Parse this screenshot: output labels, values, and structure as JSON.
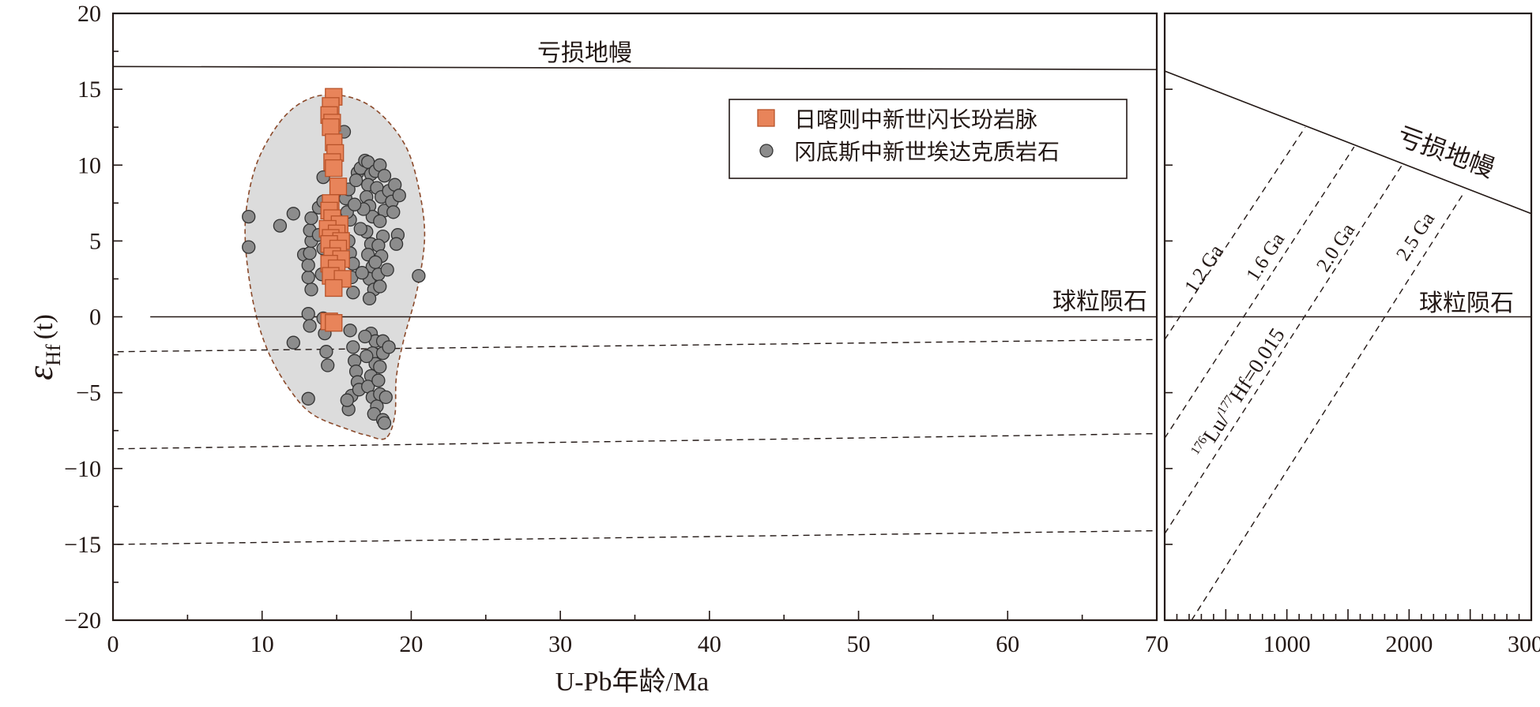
{
  "colors": {
    "axis": "#231815",
    "square_fill": "#E8845A",
    "square_stroke": "#B8532A",
    "circle_fill": "#8C8C8C",
    "circle_stroke": "#333333",
    "field_fill": "#DCDCDC",
    "field_stroke": "#8B4A2B"
  },
  "chart_data": [
    {
      "type": "scatter",
      "xlabel": "U-Pb年龄/Ma",
      "ylabel": "εHf (t)",
      "ylabel_main": "ε",
      "ylabel_sub": "Hf",
      "ylabel_tail": "(t)",
      "xlim": [
        0,
        70
      ],
      "ylim": [
        -20,
        20
      ],
      "xticks": [
        0,
        10,
        20,
        30,
        40,
        50,
        60,
        70
      ],
      "yticks": [
        20,
        15,
        10,
        5,
        0,
        -5,
        -10,
        -15,
        -20
      ],
      "ytick_labels": [
        "20",
        "15",
        "10",
        "5",
        "0",
        "−5",
        "−10",
        "−15",
        "−20"
      ],
      "legend_position": "top-right",
      "legend": [
        {
          "label": "日喀则中新世闪长玢岩脉",
          "marker": "square"
        },
        {
          "label": "冈底斯中新世埃达克质岩石",
          "marker": "circle"
        }
      ],
      "annotations": {
        "depleted_mantle": "亏损地幔",
        "chur": "球粒陨石"
      },
      "reference_lines": [
        {
          "name": "亏损地幔",
          "style": "solid",
          "y_start": 16.5,
          "y_end": 16.3
        },
        {
          "name": "球粒陨石",
          "style": "solid",
          "y_start": 0,
          "y_end": 0
        },
        {
          "style": "dashed",
          "y_start": -2.3,
          "y_end": -1.5
        },
        {
          "style": "dashed",
          "y_start": -8.7,
          "y_end": -7.7
        },
        {
          "style": "dashed",
          "y_start": -15.0,
          "y_end": -14.1
        }
      ],
      "series": [
        {
          "name": "日喀则中新世闪长玢岩脉",
          "marker": "square",
          "points": [
            [
              14.8,
              14.5
            ],
            [
              14.6,
              13.9
            ],
            [
              14.5,
              13.3
            ],
            [
              14.7,
              12.8
            ],
            [
              14.6,
              12.5
            ],
            [
              14.8,
              11.5
            ],
            [
              14.9,
              10.8
            ],
            [
              14.7,
              10.2
            ],
            [
              14.8,
              9.8
            ],
            [
              15.1,
              8.6
            ],
            [
              14.6,
              7.5
            ],
            [
              14.5,
              7.0
            ],
            [
              14.7,
              6.5
            ],
            [
              15.2,
              6.1
            ],
            [
              14.4,
              5.8
            ],
            [
              15.0,
              5.5
            ],
            [
              14.6,
              5.2
            ],
            [
              15.3,
              5.0
            ],
            [
              14.5,
              4.8
            ],
            [
              15.1,
              4.5
            ],
            [
              14.7,
              4.0
            ],
            [
              15.3,
              3.8
            ],
            [
              14.5,
              3.5
            ],
            [
              15.0,
              3.2
            ],
            [
              14.6,
              2.7
            ],
            [
              15.4,
              2.5
            ],
            [
              14.8,
              1.9
            ],
            [
              14.5,
              -0.3
            ],
            [
              14.8,
              -0.4
            ]
          ]
        },
        {
          "name": "冈底斯中新世埃达克质岩石",
          "marker": "circle",
          "points": [
            [
              9.1,
              6.6
            ],
            [
              9.1,
              4.6
            ],
            [
              11.2,
              6.0
            ],
            [
              12.1,
              6.8
            ],
            [
              12.8,
              4.1
            ],
            [
              12.1,
              -1.7
            ],
            [
              13.1,
              -5.4
            ],
            [
              13.1,
              0.2
            ],
            [
              13.2,
              -0.6
            ],
            [
              13.3,
              1.8
            ],
            [
              13.1,
              2.6
            ],
            [
              13.1,
              3.4
            ],
            [
              13.2,
              4.2
            ],
            [
              13.3,
              5.0
            ],
            [
              13.2,
              5.7
            ],
            [
              13.3,
              6.5
            ],
            [
              13.8,
              7.2
            ],
            [
              13.8,
              5.4
            ],
            [
              14.1,
              4.5
            ],
            [
              14.0,
              2.8
            ],
            [
              14.1,
              -0.1
            ],
            [
              14.2,
              -1.1
            ],
            [
              14.3,
              -2.3
            ],
            [
              14.4,
              -3.2
            ],
            [
              14.1,
              9.2
            ],
            [
              14.1,
              7.6
            ],
            [
              15.5,
              12.2
            ],
            [
              15.6,
              7.8
            ],
            [
              15.8,
              8.4
            ],
            [
              15.9,
              6.4
            ],
            [
              15.8,
              5.0
            ],
            [
              15.9,
              4.2
            ],
            [
              16.1,
              3.5
            ],
            [
              16.0,
              2.6
            ],
            [
              16.1,
              1.6
            ],
            [
              15.9,
              -0.9
            ],
            [
              16.1,
              -2.0
            ],
            [
              16.2,
              -2.9
            ],
            [
              16.3,
              -3.6
            ],
            [
              16.4,
              -4.3
            ],
            [
              16.0,
              -5.2
            ],
            [
              15.8,
              -6.1
            ],
            [
              15.7,
              -5.5
            ],
            [
              16.5,
              -4.8
            ],
            [
              16.4,
              9.5
            ],
            [
              16.6,
              9.8
            ],
            [
              16.9,
              10.3
            ],
            [
              17.1,
              10.2
            ],
            [
              17.3,
              9.4
            ],
            [
              17.1,
              8.7
            ],
            [
              17.0,
              7.9
            ],
            [
              17.2,
              7.3
            ],
            [
              17.4,
              6.6
            ],
            [
              17.0,
              5.6
            ],
            [
              17.3,
              4.8
            ],
            [
              17.1,
              4.1
            ],
            [
              17.4,
              3.3
            ],
            [
              17.2,
              2.5
            ],
            [
              17.5,
              1.8
            ],
            [
              17.2,
              1.2
            ],
            [
              17.3,
              -1.1
            ],
            [
              17.6,
              -1.6
            ],
            [
              17.4,
              -2.4
            ],
            [
              17.6,
              -3.1
            ],
            [
              17.3,
              -3.9
            ],
            [
              17.1,
              -4.6
            ],
            [
              17.4,
              -5.3
            ],
            [
              17.7,
              -5.9
            ],
            [
              17.5,
              -6.4
            ],
            [
              17.8,
              -4.2
            ],
            [
              17.9,
              -5.1
            ],
            [
              18.1,
              -6.8
            ],
            [
              18.2,
              -7.0
            ],
            [
              18.3,
              -5.3
            ],
            [
              17.6,
              9.6
            ],
            [
              17.9,
              10.0
            ],
            [
              17.7,
              8.5
            ],
            [
              18.0,
              7.9
            ],
            [
              18.2,
              7.0
            ],
            [
              17.9,
              6.3
            ],
            [
              18.1,
              5.3
            ],
            [
              17.8,
              4.7
            ],
            [
              18.0,
              4.0
            ],
            [
              17.8,
              2.8
            ],
            [
              18.1,
              -1.6
            ],
            [
              18.1,
              -2.4
            ],
            [
              18.5,
              8.3
            ],
            [
              18.7,
              7.6
            ],
            [
              18.8,
              6.9
            ],
            [
              18.9,
              8.7
            ],
            [
              19.2,
              8.0
            ],
            [
              19.1,
              5.4
            ],
            [
              19.0,
              4.8
            ],
            [
              20.5,
              2.7
            ],
            [
              17.9,
              2.0
            ],
            [
              16.7,
              2.9
            ],
            [
              16.9,
              -1.3
            ],
            [
              17.0,
              -2.6
            ],
            [
              18.4,
              3.1
            ],
            [
              18.5,
              -2.0
            ],
            [
              18.2,
              9.3
            ],
            [
              16.6,
              5.8
            ],
            [
              16.3,
              9.0
            ],
            [
              16.8,
              7.1
            ],
            [
              17.6,
              3.6
            ],
            [
              15.7,
              6.9
            ],
            [
              16.2,
              7.4
            ],
            [
              17.9,
              -3.3
            ]
          ]
        }
      ],
      "field_outline": [
        [
          18.3,
          -8
        ],
        [
          17,
          -7.8
        ],
        [
          16,
          -7.5
        ],
        [
          13.5,
          -6.5
        ],
        [
          12,
          -5
        ],
        [
          10.5,
          -2.5
        ],
        [
          9.5,
          0.5
        ],
        [
          8.9,
          4.5
        ],
        [
          9,
          7.5
        ],
        [
          9.8,
          10.5
        ],
        [
          11.5,
          13.2
        ],
        [
          13.5,
          14.5
        ],
        [
          15.8,
          14.5
        ],
        [
          17.8,
          13.5
        ],
        [
          19.6,
          11.3
        ],
        [
          20.5,
          8.5
        ],
        [
          20.9,
          5.3
        ],
        [
          20.4,
          1.8
        ],
        [
          19.5,
          -1.5
        ],
        [
          19.0,
          -4.0
        ],
        [
          18.9,
          -6.5
        ]
      ]
    },
    {
      "type": "line",
      "xlim": [
        0,
        3000
      ],
      "ylim": [
        -20,
        20
      ],
      "xticks": [
        1000,
        2000,
        3000
      ],
      "annotations": {
        "depleted_mantle": "亏损地幔",
        "chur": "球粒陨石",
        "ratio_label": "Lu/Hf=0.015",
        "ratio_sup1": "176",
        "ratio_sup2": "177"
      },
      "lines": [
        {
          "name": "亏损地幔",
          "style": "solid",
          "x": [
            0,
            3000
          ],
          "y": [
            16.2,
            6.8
          ]
        },
        {
          "name": "球粒陨石",
          "style": "solid",
          "x": [
            0,
            3000
          ],
          "y": [
            0,
            0
          ]
        },
        {
          "name": "1.2 Ga",
          "style": "dashed",
          "x": [
            0,
            1150
          ],
          "y": [
            -1.5,
            12.5
          ]
        },
        {
          "name": "1.6 Ga",
          "style": "dashed",
          "x": [
            0,
            1550
          ],
          "y": [
            -8.0,
            11.2
          ]
        },
        {
          "name": "2.0 Ga",
          "style": "dashed",
          "x": [
            0,
            1950
          ],
          "y": [
            -14.3,
            10.1
          ]
        },
        {
          "name": "2.5 Ga",
          "style": "dashed",
          "x": [
            220,
            2450
          ],
          "y": [
            -20,
            8.2
          ]
        }
      ],
      "line_labels": [
        "1.2 Ga",
        "1.6 Ga",
        "2.0 Ga",
        "2.5 Ga"
      ]
    }
  ]
}
